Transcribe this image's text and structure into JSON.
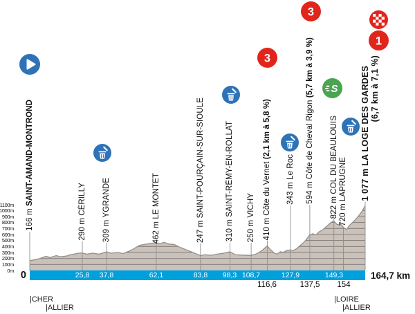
{
  "chart_data": {
    "type": "area",
    "title": "Stage elevation profile Saint-Amand-Montrond to La Loge des Gardes",
    "xlim": [
      0,
      164.7
    ],
    "ylim": [
      0,
      1100
    ],
    "y_grid_step_m": 100,
    "profile_fill": "#c9c1ba",
    "profile_outline": "#968f89",
    "x_km": [
      0,
      2,
      5,
      8,
      10,
      13,
      15,
      18,
      20,
      24,
      25.8,
      28,
      31,
      34,
      37.8,
      40,
      43,
      46,
      50,
      54,
      57,
      60,
      62.1,
      64,
      66,
      68,
      71,
      74,
      77,
      80,
      83.8,
      86,
      89,
      92,
      95,
      98.3,
      101,
      104,
      108.7,
      111,
      114,
      116.6,
      118,
      120,
      121.5,
      123,
      124.5,
      126,
      127.9,
      129,
      131,
      133,
      135,
      137.5,
      139,
      140.5,
      142,
      144,
      146,
      148,
      149.3,
      151,
      152.5,
      154,
      155.5,
      157,
      158.5,
      160,
      161.5,
      163,
      164.7
    ],
    "y_m": [
      166,
      175,
      200,
      238,
      215,
      248,
      228,
      240,
      262,
      288,
      290,
      272,
      288,
      272,
      309,
      287,
      300,
      282,
      340,
      420,
      438,
      452,
      462,
      446,
      470,
      442,
      432,
      382,
      342,
      302,
      247,
      262,
      252,
      272,
      286,
      310,
      262,
      256,
      250,
      272,
      330,
      410,
      352,
      292,
      272,
      312,
      302,
      330,
      343,
      326,
      362,
      422,
      482,
      594,
      612,
      592,
      642,
      682,
      742,
      802,
      822,
      762,
      778,
      720,
      682,
      752,
      800,
      850,
      912,
      980,
      1077
    ]
  },
  "y_axis_labels": [
    "1100m",
    "1000m",
    "900m",
    "800m",
    "700m",
    "600m",
    "500m",
    "400m",
    "300m",
    "200m",
    "100m",
    "0m"
  ],
  "x_axis": {
    "origin_label": "0",
    "total_label": "164,7 km",
    "strip_labels": [
      "25,8",
      "37,8",
      "62,1",
      "83,8",
      "98,3",
      "108,7",
      "127,9",
      "149,3"
    ],
    "below_labels": [
      "116,6",
      "137,5",
      "154"
    ]
  },
  "waypoints": [
    {
      "km": 0,
      "elev": "166 m",
      "name": "SAINT-AMAND-MONTROND"
    },
    {
      "km": 25.8,
      "elev": "290 m",
      "name": "CÉRILLY"
    },
    {
      "km": 37.8,
      "elev": "309 m",
      "name": "YGRANDE"
    },
    {
      "km": 62.1,
      "elev": "462 m",
      "name": "LE MONTET"
    },
    {
      "km": 83.8,
      "elev": "247 m",
      "name": "SAINT-POURÇAIN-SUR-SIOULE"
    },
    {
      "km": 98.3,
      "elev": "310 m",
      "name": "SAINT-RÉMY-EN-ROLLAT"
    },
    {
      "km": 108.7,
      "elev": "250 m",
      "name": "VICHY"
    },
    {
      "km": 116.6,
      "elev": "410 m",
      "name": "Côte du Vernet",
      "gradient": "(2,1 km à 5,8 %)"
    },
    {
      "km": 127.9,
      "elev": "343 m",
      "name": "Le Roc"
    },
    {
      "km": 137.5,
      "elev": "594 m",
      "name": "Côte de Cheval Rigon",
      "gradient": "(5,7 km à 3,9 %)"
    },
    {
      "km": 149.3,
      "elev": "822 m",
      "name": "COL DU BEAULOUIS"
    },
    {
      "km": 154,
      "elev": "720 m",
      "name": "LAPRUGNE"
    },
    {
      "km": 164.7,
      "elev": "1 077 m",
      "name": "LA LOGE DES GARDES",
      "gradient": "(6,7 km à 7,1 %)"
    }
  ],
  "markers": {
    "climb_cat_vernet": "3",
    "climb_cat_rigon": "3",
    "climb_cat_finish": "1",
    "sprint_letter": "S"
  },
  "boundaries": {
    "left_1": "|CHER",
    "left_2": "|ALLIER",
    "right_1": "|LOIRE",
    "right_2": "|ALLIER"
  },
  "colors": {
    "icon_blue": "#2e73b7",
    "icon_red": "#e1251b",
    "icon_green": "#4aa551",
    "strip_blue": "#00a0dd"
  }
}
